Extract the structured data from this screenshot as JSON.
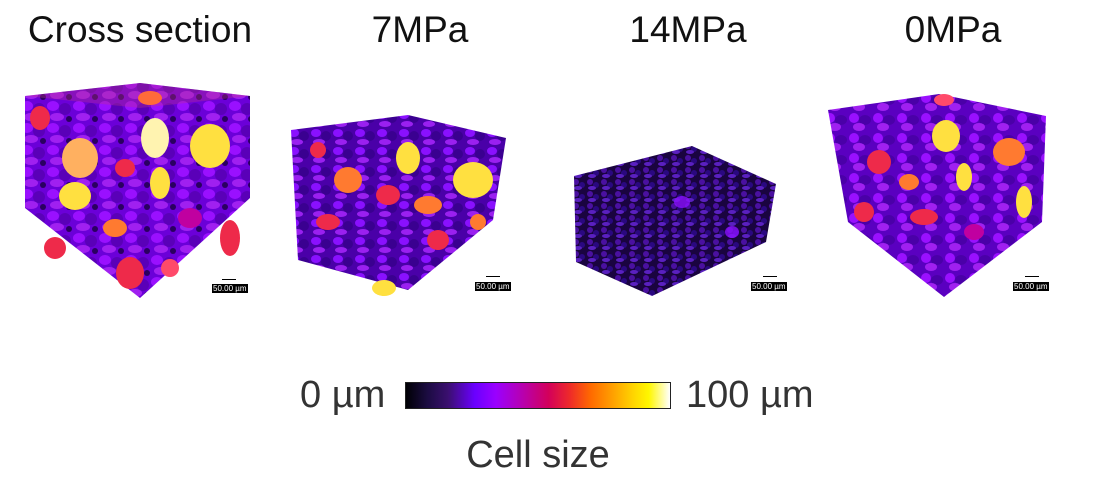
{
  "panels": [
    {
      "title": "Cross section",
      "scale_label": "50.00 µm"
    },
    {
      "title": "7MPa",
      "scale_label": "50.00 µm"
    },
    {
      "title": "14MPa",
      "scale_label": "50.00 µm"
    },
    {
      "title": "0MPa",
      "scale_label": "50.00 µm"
    }
  ],
  "legend": {
    "min_label": "0 µm",
    "max_label": "100 µm",
    "title": "Cell size",
    "colormap": "plasma-like"
  },
  "colors": {
    "dark": "#1b0c41",
    "purple": "#8a00ff",
    "magenta": "#c000a0",
    "red": "#ee2a4a",
    "orange": "#ff7a30",
    "yellow": "#ffe040",
    "pale": "#fff3b0"
  }
}
